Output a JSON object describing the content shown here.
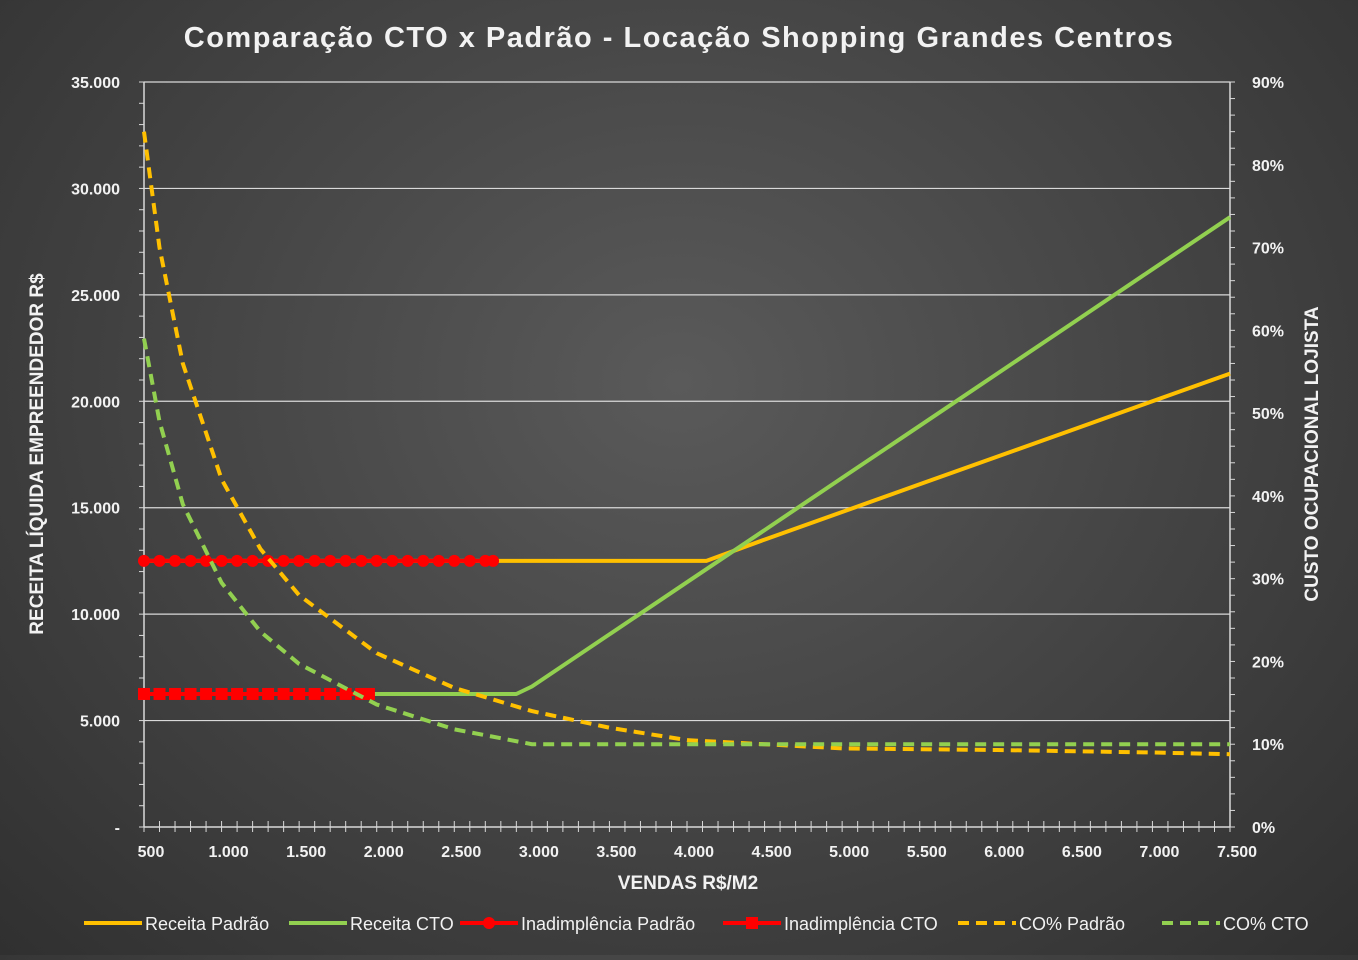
{
  "chart_data": {
    "type": "line",
    "title": "Comparação CTO x Padrão - Locação Shopping Grandes Centros",
    "xlabel": "VENDAS R$/M2",
    "ylabel": "RECEITA LÍQUIDA EMPREENDEDOR R$",
    "y2label": "CUSTO OCUPACIONAL LOJISTA",
    "xlim": [
      500,
      7500
    ],
    "ylim": [
      0,
      35000
    ],
    "y2lim": [
      0,
      0.9
    ],
    "x_ticks": [
      "500",
      "1.000",
      "1.500",
      "2.000",
      "2.500",
      "3.000",
      "3.500",
      "4.000",
      "4.500",
      "5.000",
      "5.500",
      "6.000",
      "6.500",
      "7.000",
      "7.500"
    ],
    "y_ticks": [
      "-",
      "5.000",
      "10.000",
      "15.000",
      "20.000",
      "25.000",
      "30.000",
      "35.000"
    ],
    "y2_ticks": [
      "0%",
      "10%",
      "20%",
      "30%",
      "40%",
      "50%",
      "60%",
      "70%",
      "80%",
      "90%"
    ],
    "grid": true,
    "legend_position": "bottom",
    "series": [
      {
        "name": "Receita Padrão",
        "axis": "left",
        "color": "#ffc000",
        "style": "solid",
        "x": [
          500,
          1000,
          1500,
          2000,
          2500,
          3000,
          3500,
          4125,
          4500,
          5000,
          5500,
          6000,
          6500,
          7000,
          7500
        ],
        "y": [
          12500,
          12500,
          12500,
          12500,
          12500,
          12500,
          12500,
          12500,
          13500,
          14800,
          16100,
          17400,
          18700,
          20000,
          21300
        ]
      },
      {
        "name": "Receita CTO",
        "axis": "left",
        "color": "#92d050",
        "style": "solid",
        "x": [
          500,
          1000,
          1500,
          2000,
          2500,
          2900,
          3000,
          3500,
          4000,
          4500,
          5000,
          5500,
          6000,
          6500,
          7000,
          7500
        ],
        "y": [
          6250,
          6250,
          6250,
          6250,
          6250,
          6250,
          6600,
          9050,
          11500,
          13950,
          16400,
          18850,
          21300,
          23750,
          26200,
          28650
        ]
      },
      {
        "name": "Inadimplência Padrão",
        "axis": "left",
        "color": "#ff0000",
        "style": "markers-circle",
        "x": [
          500,
          600,
          700,
          800,
          900,
          1000,
          1100,
          1200,
          1300,
          1400,
          1500,
          1600,
          1700,
          1800,
          1900,
          2000,
          2100,
          2200,
          2300,
          2400,
          2500,
          2600,
          2700,
          2750
        ],
        "y": [
          12500,
          12500,
          12500,
          12500,
          12500,
          12500,
          12500,
          12500,
          12500,
          12500,
          12500,
          12500,
          12500,
          12500,
          12500,
          12500,
          12500,
          12500,
          12500,
          12500,
          12500,
          12500,
          12500,
          12500
        ]
      },
      {
        "name": "Inadimplência CTO",
        "axis": "left",
        "color": "#ff0000",
        "style": "markers-square",
        "x": [
          500,
          600,
          700,
          800,
          900,
          1000,
          1100,
          1200,
          1300,
          1400,
          1500,
          1600,
          1700,
          1800,
          1900,
          1950
        ],
        "y": [
          6250,
          6250,
          6250,
          6250,
          6250,
          6250,
          6250,
          6250,
          6250,
          6250,
          6250,
          6250,
          6250,
          6250,
          6250,
          6250
        ]
      },
      {
        "name": "CO% Padrão",
        "axis": "right",
        "color": "#ffc000",
        "style": "dashed",
        "x": [
          500,
          600,
          750,
          1000,
          1250,
          1500,
          2000,
          2500,
          3000,
          3500,
          4000,
          5000,
          6000,
          7000,
          7500
        ],
        "y": [
          0.84,
          0.7,
          0.56,
          0.42,
          0.336,
          0.28,
          0.21,
          0.168,
          0.14,
          0.12,
          0.105,
          0.095,
          0.093,
          0.09,
          0.088
        ]
      },
      {
        "name": "CO% CTO",
        "axis": "right",
        "color": "#92d050",
        "style": "dashed",
        "x": [
          500,
          600,
          750,
          1000,
          1250,
          1500,
          2000,
          2500,
          3000,
          3500,
          4000,
          5000,
          6000,
          7000,
          7500
        ],
        "y": [
          0.59,
          0.49,
          0.39,
          0.295,
          0.236,
          0.197,
          0.148,
          0.118,
          0.1,
          0.1,
          0.1,
          0.1,
          0.1,
          0.1,
          0.1
        ]
      }
    ]
  }
}
